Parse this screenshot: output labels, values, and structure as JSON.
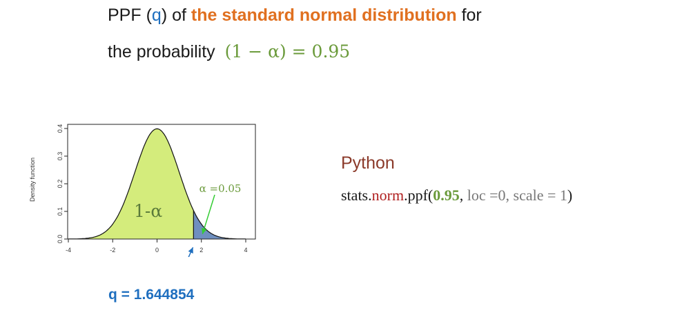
{
  "title": {
    "prefix": "PPF (",
    "q": "q",
    "mid": ") of ",
    "emph": "the standard normal distribution",
    "suffix": " for",
    "line2_text": "the probability",
    "line2_formula": "(1 − α) = 0.95"
  },
  "plot": {
    "ylabel": "Density function",
    "y_ticks": [
      "0.0",
      "0.1",
      "0.2",
      "0.3",
      "0.4"
    ],
    "x_ticks": [
      "-4",
      "-2",
      "0",
      "2",
      "4"
    ],
    "region_label": "1-α",
    "alpha_label": "α =0.05",
    "q": 1.644854,
    "xlim": [
      -4,
      4
    ],
    "ylim": [
      0,
      0.4
    ],
    "colors": {
      "body": "#d4ec7c",
      "tail": "#6f8fbf",
      "pointer": "#33cc33",
      "arrow": "#1f6fbf"
    }
  },
  "python": {
    "label": "Python",
    "code_prefix": "stats.",
    "code_norm": "norm",
    "code_ppf": ".ppf(",
    "code_val": "0.95",
    "code_sep": ", ",
    "code_loc": "loc =0, scale = 1",
    "code_close": ")"
  },
  "result": "q = 1.644854"
}
